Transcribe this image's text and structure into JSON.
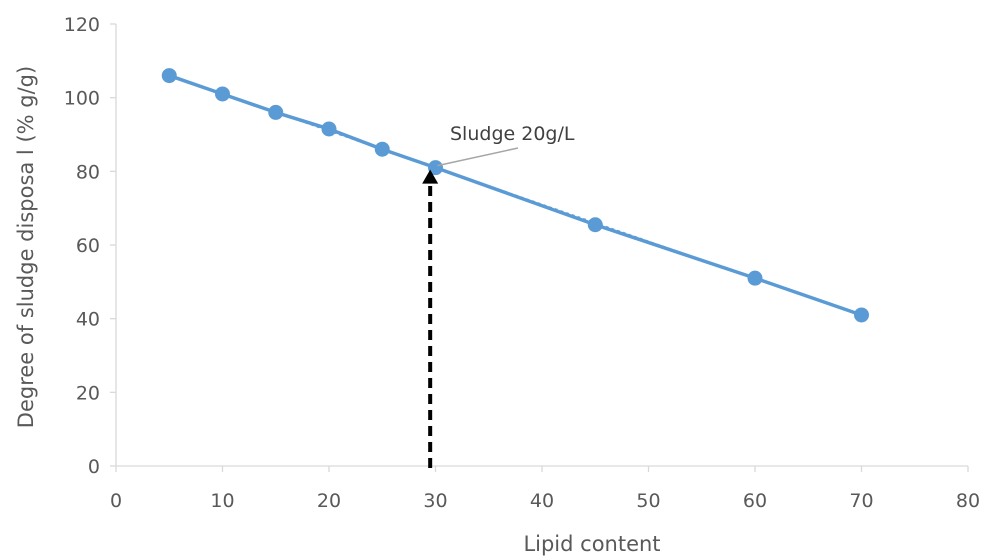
{
  "chart_data": {
    "type": "scatter",
    "title": "",
    "xlabel": "Lipid content",
    "ylabel": "Degree of sludge disposa l (% g/g)",
    "xlim": [
      0,
      80
    ],
    "ylim": [
      0,
      120
    ],
    "x_ticks": [
      0,
      10,
      20,
      30,
      40,
      50,
      60,
      70,
      80
    ],
    "y_ticks": [
      0,
      20,
      40,
      60,
      80,
      100,
      120
    ],
    "grid": false,
    "legend": "none",
    "series": [
      {
        "x": [
          5,
          10,
          15,
          20,
          25,
          30,
          45,
          60,
          70
        ],
        "y": [
          106,
          101,
          96,
          91.5,
          86,
          81,
          65.5,
          51,
          41
        ],
        "color": "#5b9bd5",
        "trendline": "linear"
      }
    ],
    "annotations": [
      {
        "text": "Sludge 20g/L",
        "point": [
          30,
          81
        ],
        "arrow": {
          "from": [
            29.5,
            0
          ],
          "to": [
            29.5,
            81
          ],
          "style": "dashed",
          "color": "#000000"
        }
      }
    ]
  }
}
